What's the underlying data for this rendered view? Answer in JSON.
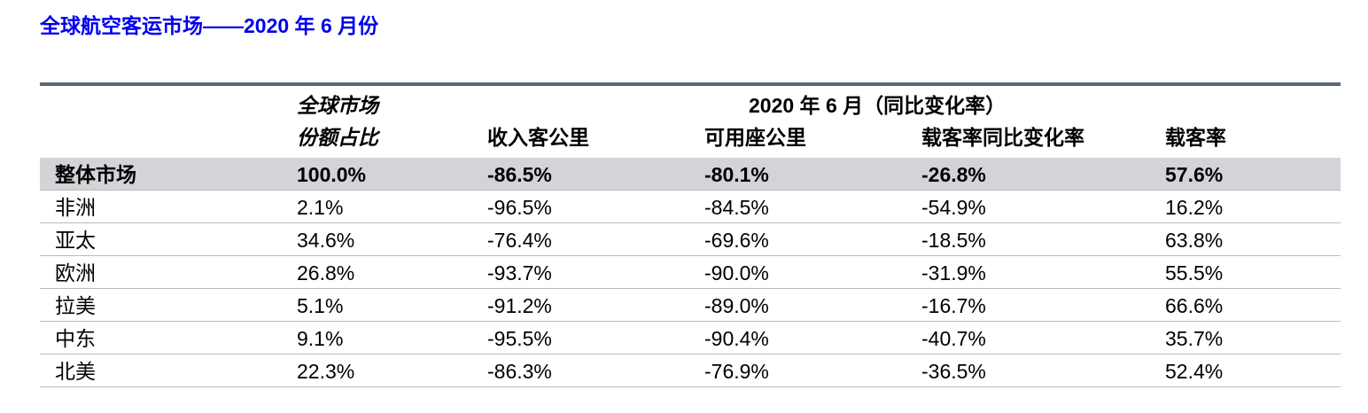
{
  "title": "全球航空客运市场——2020 年 6 月份",
  "table": {
    "group_header": "2020 年 6 月（同比变化率）",
    "share_header": [
      "全球市场",
      "份额占比"
    ],
    "columns": [
      "收入客公里",
      "可用座公里",
      "载客率同比变化率",
      "载客率"
    ],
    "rows": [
      [
        "整体市场",
        "100.0%",
        "-86.5%",
        "-80.1%",
        "-26.8%",
        "57.6%"
      ],
      [
        "非洲",
        "2.1%",
        "-96.5%",
        "-84.5%",
        "-54.9%",
        "16.2%"
      ],
      [
        "亚太",
        "34.6%",
        "-76.4%",
        "-69.6%",
        "-18.5%",
        "63.8%"
      ],
      [
        "欧洲",
        "26.8%",
        "-93.7%",
        "-90.0%",
        "-31.9%",
        "55.5%"
      ],
      [
        "拉美",
        "5.1%",
        "-91.2%",
        "-89.0%",
        "-16.7%",
        "66.6%"
      ],
      [
        "中东",
        "9.1%",
        "-95.5%",
        "-90.4%",
        "-40.7%",
        "35.7%"
      ],
      [
        "北美",
        "22.3%",
        "-86.3%",
        "-76.9%",
        "-36.5%",
        "52.4%"
      ]
    ]
  }
}
